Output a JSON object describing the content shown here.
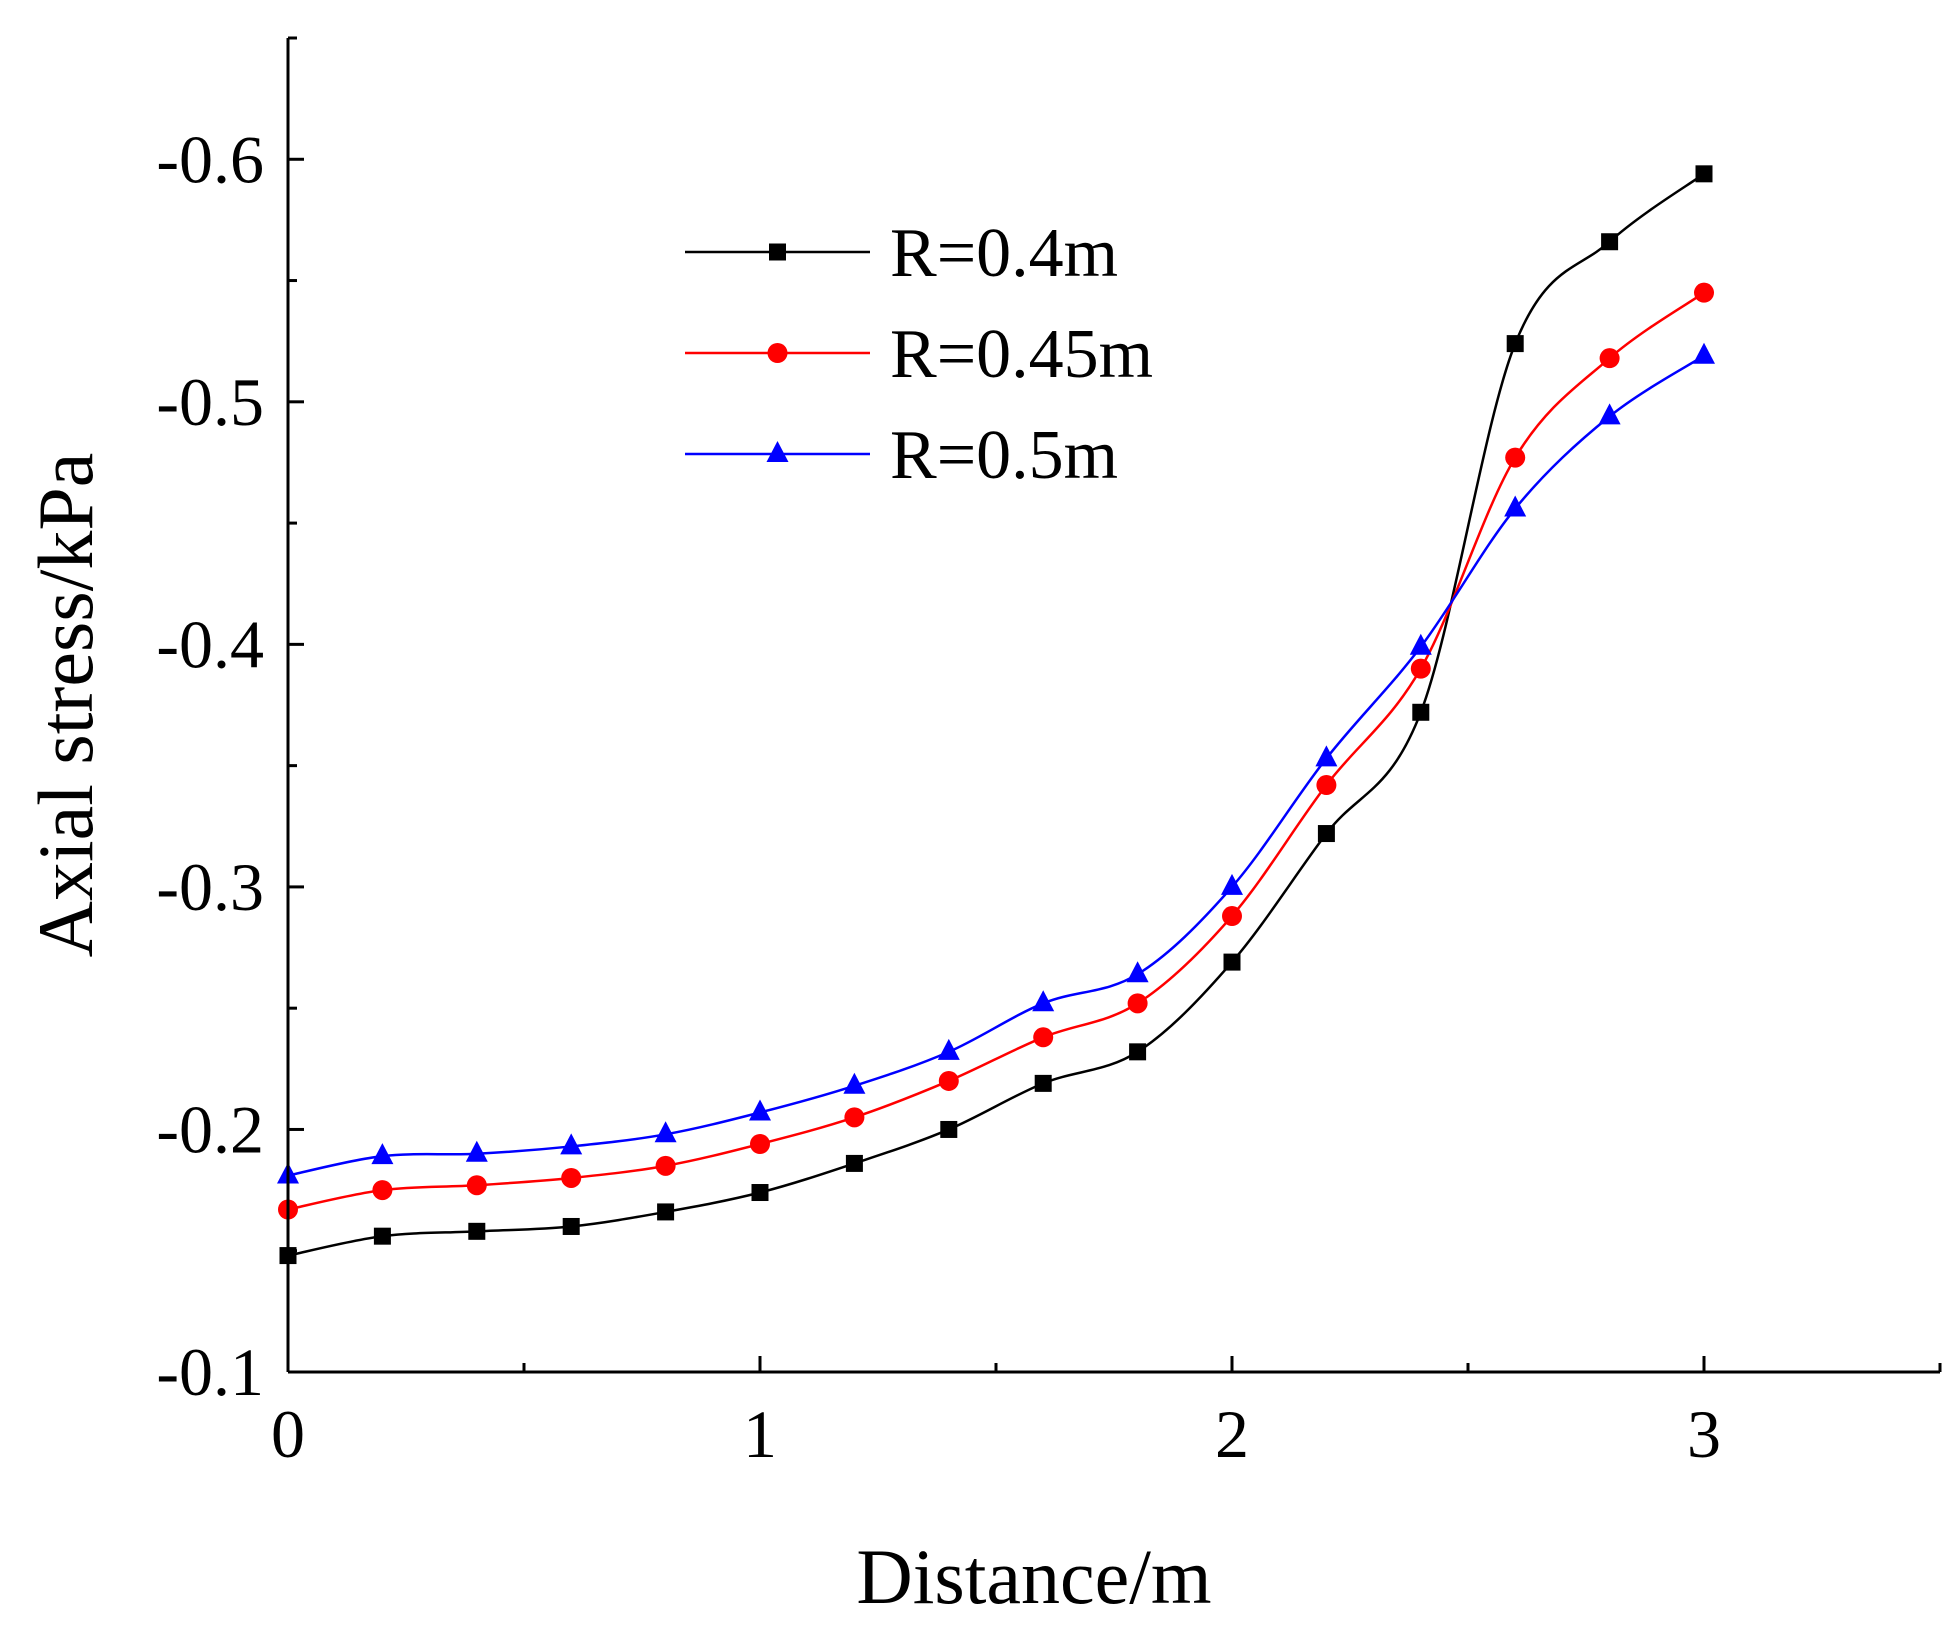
{
  "chart_data": {
    "type": "line",
    "title": "",
    "xlabel": "Distance/m",
    "ylabel": "Axial stress/kPa",
    "xlim": [
      0,
      3.5
    ],
    "ylim": [
      -0.1,
      -0.65
    ],
    "y_axis_inverted": true,
    "grid": false,
    "legend_position": "top-center",
    "x_ticks": [
      {
        "value": 0,
        "label": "0"
      },
      {
        "value": 1,
        "label": "1"
      },
      {
        "value": 2,
        "label": "2"
      },
      {
        "value": 3,
        "label": "3"
      }
    ],
    "x_minor_ticks": [
      0.5,
      1.5,
      2.5,
      3.5
    ],
    "y_ticks": [
      {
        "value": -0.1,
        "label": "-0.1"
      },
      {
        "value": -0.2,
        "label": "-0.2"
      },
      {
        "value": -0.3,
        "label": "-0.3"
      },
      {
        "value": -0.4,
        "label": "-0.4"
      },
      {
        "value": -0.5,
        "label": "-0.5"
      },
      {
        "value": -0.6,
        "label": "-0.6"
      }
    ],
    "y_minor_ticks": [
      -0.15,
      -0.25,
      -0.35,
      -0.45,
      -0.55,
      -0.65
    ],
    "x": [
      0,
      0.2,
      0.4,
      0.6,
      0.8,
      1.0,
      1.2,
      1.4,
      1.6,
      1.8,
      2.0,
      2.2,
      2.4,
      2.6,
      2.8,
      3.0
    ],
    "series": [
      {
        "name": "R=0.4m",
        "color": "#000000",
        "marker": "square",
        "values": [
          -0.148,
          -0.156,
          -0.158,
          -0.16,
          -0.166,
          -0.174,
          -0.186,
          -0.2,
          -0.219,
          -0.232,
          -0.269,
          -0.322,
          -0.372,
          -0.524,
          -0.566,
          -0.594
        ]
      },
      {
        "name": "R=0.45m",
        "color": "#ff0000",
        "marker": "circle",
        "values": [
          -0.167,
          -0.175,
          -0.177,
          -0.18,
          -0.185,
          -0.194,
          -0.205,
          -0.22,
          -0.238,
          -0.252,
          -0.288,
          -0.342,
          -0.39,
          -0.477,
          -0.518,
          -0.545
        ]
      },
      {
        "name": "R=0.5m",
        "color": "#0000ff",
        "marker": "triangle",
        "values": [
          -0.181,
          -0.189,
          -0.19,
          -0.193,
          -0.198,
          -0.207,
          -0.218,
          -0.232,
          -0.252,
          -0.264,
          -0.3,
          -0.353,
          -0.399,
          -0.456,
          -0.494,
          -0.519
        ]
      }
    ]
  }
}
